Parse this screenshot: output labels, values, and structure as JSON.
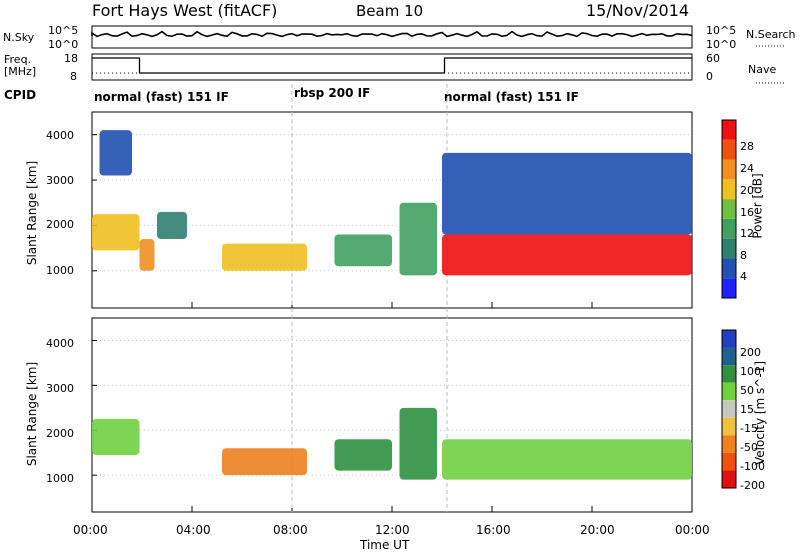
{
  "header": {
    "title": "Fort Hays West (fitACF)",
    "beam": "Beam 10",
    "date": "15/Nov/2014"
  },
  "sky_panel": {
    "left_label": "N.Sky",
    "right_label": "N.Search",
    "left_ticks": [
      "10^5",
      "10^0"
    ],
    "right_ticks": [
      "10^5",
      "10^0"
    ]
  },
  "freq_panel": {
    "left_label_line1": "Freq.",
    "left_label_line2": "[MHz]",
    "right_label": "Nave",
    "left_ticks": [
      "18",
      "8"
    ],
    "right_ticks": [
      "60",
      "0"
    ]
  },
  "cpid": {
    "label": "CPID",
    "segments": [
      {
        "start_h": 0,
        "text": "normal (fast) 151 IF"
      },
      {
        "start_h": 8,
        "text": "rbsp 200 IF"
      },
      {
        "start_h": 14.2,
        "text": "normal (fast) 151 IF"
      }
    ]
  },
  "xaxis": {
    "ticks": [
      "00:00",
      "04:00",
      "08:00",
      "12:00",
      "16:00",
      "20:00",
      "00:00"
    ],
    "title": "Time UT"
  },
  "power_panel": {
    "ylabel": "Slant Range [km]",
    "yticks": [
      "1000",
      "2000",
      "3000",
      "4000"
    ],
    "colorbar_label": "Power [dB]",
    "colorbar_ticks": [
      "4",
      "8",
      "12",
      "16",
      "20",
      "24",
      "28"
    ],
    "colors": [
      "#2020ff",
      "#2050b0",
      "#308070",
      "#40a060",
      "#70c040",
      "#f0c020",
      "#f09020",
      "#f05010",
      "#f01010"
    ]
  },
  "velocity_panel": {
    "ylabel": "Slant Range [km]",
    "yticks": [
      "1000",
      "2000",
      "3000",
      "4000"
    ],
    "colorbar_label": "Velocity [m s^-1]",
    "colorbar_ticks": [
      "200",
      "100",
      "50",
      "15",
      "-15",
      "-50",
      "-100",
      "-200"
    ],
    "colors": [
      "#2040c0",
      "#206090",
      "#309040",
      "#70d040",
      "#c8c8c0",
      "#f0c040",
      "#f08020",
      "#f05010",
      "#e01010"
    ]
  },
  "chart_data": {
    "type": "heatmap",
    "x_range_hours": [
      0,
      24
    ],
    "y_range_km": [
      180,
      4500
    ],
    "power_blobs": [
      {
        "t0": 0.0,
        "t1": 1.9,
        "r0": 1450,
        "r1": 2250,
        "power": 16
      },
      {
        "t0": 0.3,
        "t1": 1.6,
        "r0": 3100,
        "r1": 4100,
        "power": 6
      },
      {
        "t0": 1.9,
        "t1": 2.5,
        "r0": 1000,
        "r1": 1700,
        "power": 20
      },
      {
        "t0": 2.6,
        "t1": 3.8,
        "r0": 1700,
        "r1": 2300,
        "power": 8
      },
      {
        "t0": 5.2,
        "t1": 8.6,
        "r0": 1000,
        "r1": 1600,
        "power": 18
      },
      {
        "t0": 9.7,
        "t1": 12.0,
        "r0": 1100,
        "r1": 1800,
        "power": 10
      },
      {
        "t0": 12.3,
        "t1": 13.8,
        "r0": 900,
        "r1": 2500,
        "power": 12
      },
      {
        "t0": 14.0,
        "t1": 24.0,
        "r0": 900,
        "r1": 1800,
        "power": 26
      },
      {
        "t0": 14.0,
        "t1": 24.0,
        "r0": 1800,
        "r1": 3600,
        "power": 6
      }
    ],
    "velocity_blobs": [
      {
        "t0": 0.0,
        "t1": 1.9,
        "r0": 1450,
        "r1": 2250,
        "velocity": 0
      },
      {
        "t0": 5.2,
        "t1": 8.6,
        "r0": 1000,
        "r1": 1600,
        "velocity": -150
      },
      {
        "t0": 9.7,
        "t1": 12.0,
        "r0": 1100,
        "r1": 1800,
        "velocity": 30
      },
      {
        "t0": 12.3,
        "t1": 13.8,
        "r0": 900,
        "r1": 2500,
        "velocity": 40
      },
      {
        "t0": 14.0,
        "t1": 24.0,
        "r0": 900,
        "r1": 1800,
        "velocity": 0
      }
    ]
  }
}
